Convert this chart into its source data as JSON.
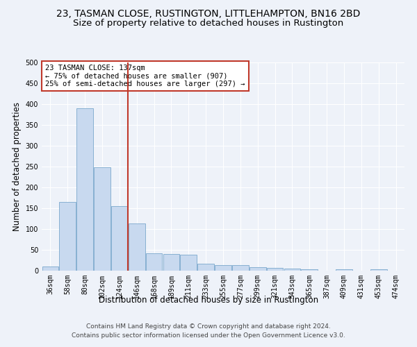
{
  "title": "23, TASMAN CLOSE, RUSTINGTON, LITTLEHAMPTON, BN16 2BD",
  "subtitle": "Size of property relative to detached houses in Rustington",
  "xlabel": "Distribution of detached houses by size in Rustington",
  "ylabel": "Number of detached properties",
  "categories": [
    "36sqm",
    "58sqm",
    "80sqm",
    "102sqm",
    "124sqm",
    "146sqm",
    "168sqm",
    "189sqm",
    "211sqm",
    "233sqm",
    "255sqm",
    "277sqm",
    "299sqm",
    "321sqm",
    "343sqm",
    "365sqm",
    "387sqm",
    "409sqm",
    "431sqm",
    "453sqm",
    "474sqm"
  ],
  "values": [
    10,
    165,
    390,
    248,
    155,
    113,
    42,
    40,
    38,
    17,
    14,
    13,
    8,
    7,
    5,
    3,
    0,
    3,
    0,
    4,
    0
  ],
  "bar_color": "#c8d9ef",
  "bar_edge_color": "#7aa8cc",
  "vline_x_index": 4.5,
  "vline_color": "#c0392b",
  "annotation_text": "23 TASMAN CLOSE: 137sqm\n← 75% of detached houses are smaller (907)\n25% of semi-detached houses are larger (297) →",
  "annotation_box_color": "#c0392b",
  "ylim": [
    0,
    500
  ],
  "yticks": [
    0,
    50,
    100,
    150,
    200,
    250,
    300,
    350,
    400,
    450,
    500
  ],
  "footer": "Contains HM Land Registry data © Crown copyright and database right 2024.\nContains public sector information licensed under the Open Government Licence v3.0.",
  "bg_color": "#eef2f9",
  "plot_bg_color": "#eef2f9",
  "title_fontsize": 10,
  "subtitle_fontsize": 9.5,
  "axis_label_fontsize": 8.5,
  "tick_fontsize": 7,
  "footer_fontsize": 6.5,
  "annotation_fontsize": 7.5
}
